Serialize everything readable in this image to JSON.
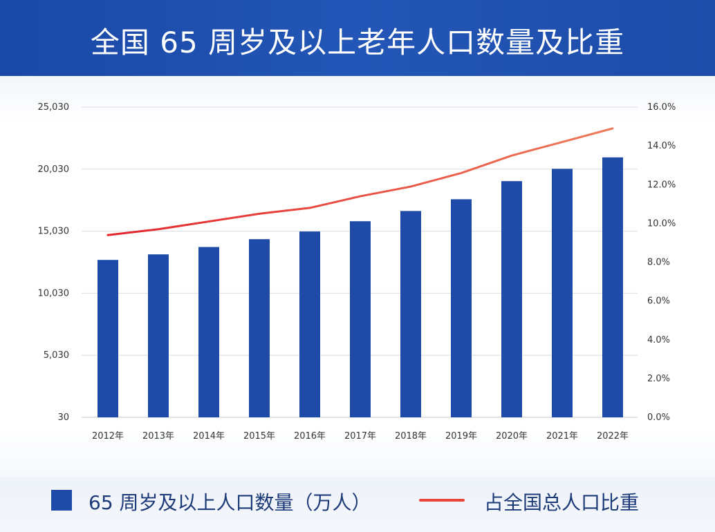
{
  "title": "全国 65 周岁及以上老年人口数量及比重",
  "legend": {
    "bar_label": "65 周岁及以上人口数量（万人）",
    "line_label": "占全国总人口比重"
  },
  "colors": {
    "header": "#1f4fae",
    "bar": "#1e4aa8",
    "line": "#e8453d",
    "grid": "#d9dde3",
    "legend_text": "#1d3a78"
  },
  "chart_data": {
    "type": "bar",
    "categories": [
      "2012年",
      "2013年",
      "2014年",
      "2015年",
      "2016年",
      "2017年",
      "2018年",
      "2019年",
      "2020年",
      "2021年",
      "2022年"
    ],
    "series": [
      {
        "name": "65 周岁及以上人口数量（万人）",
        "type": "bar",
        "axis": "left",
        "values": [
          12714,
          13161,
          13755,
          14386,
          15003,
          15831,
          16658,
          17603,
          19064,
          20056,
          20978
        ]
      },
      {
        "name": "占全国总人口比重",
        "type": "line",
        "axis": "right",
        "values": [
          9.4,
          9.7,
          10.1,
          10.5,
          10.8,
          11.4,
          11.9,
          12.6,
          13.5,
          14.2,
          14.9
        ]
      }
    ],
    "y_left": {
      "ticks": [
        "30",
        "5,030",
        "10,030",
        "15,030",
        "20,030",
        "25,030"
      ],
      "min": 30,
      "max": 25030
    },
    "y_right": {
      "ticks": [
        "0.0%",
        "2.0%",
        "4.0%",
        "6.0%",
        "8.0%",
        "10.0%",
        "12.0%",
        "14.0%",
        "16.0%"
      ],
      "min": 0,
      "max": 16
    },
    "grid": true,
    "legend_position": "bottom"
  }
}
